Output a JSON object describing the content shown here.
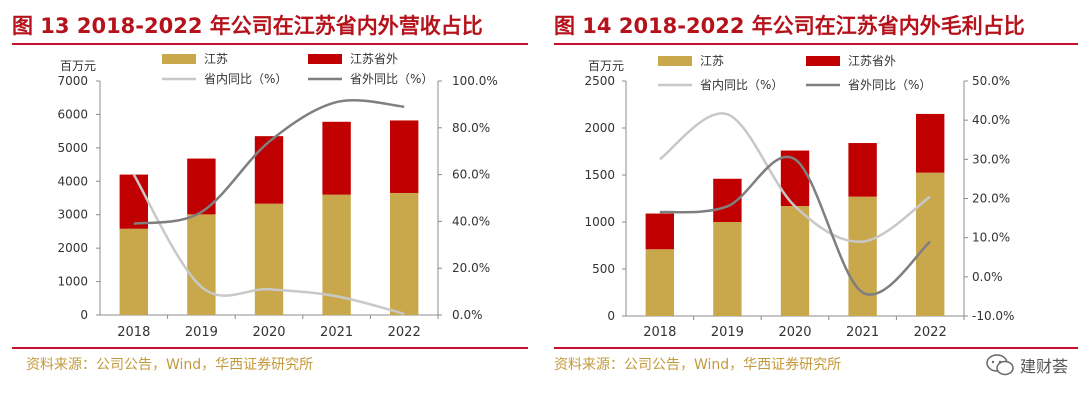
{
  "figures": [
    {
      "title": "图 13 2018-2022 年公司在江苏省内外营收占比",
      "source": "资料来源：公司公告，Wind，华西证券研究所",
      "unit_label": "百万元",
      "legend": {
        "jiangsu": "江苏",
        "outside": "江苏省外",
        "inside_ratio": "省内同比（%）",
        "outside_ratio": "省外同比（%）"
      }
    },
    {
      "title": "图 14 2018-2022 年公司在江苏省内外毛利占比",
      "source": "资料来源：公司公告，Wind，华西证券研究所",
      "unit_label": "百万元",
      "legend": {
        "jiangsu": "江苏",
        "outside": "江苏省外",
        "inside_ratio": "省内同比（%）",
        "outside_ratio": "省外同比（%）"
      }
    }
  ],
  "watermark": {
    "text": "建财荟"
  },
  "colors": {
    "jiangsu": "#c9a84c",
    "outside": "#c00000",
    "inside_line": "#c8c8c8",
    "outside_line": "#7f7f7f",
    "title": "#b5121b",
    "source": "#c49a3c"
  },
  "chart_data": [
    {
      "type": "bar",
      "stacked": true,
      "categories": [
        "2018",
        "2019",
        "2020",
        "2021",
        "2022"
      ],
      "ylim": [
        0,
        7000
      ],
      "yticks": [
        "0",
        "1000",
        "2000",
        "3000",
        "4000",
        "5000",
        "6000",
        "7000"
      ],
      "y2lim": [
        0,
        100
      ],
      "y2ticks": [
        "0.0%",
        "20.0%",
        "40.0%",
        "60.0%",
        "80.0%",
        "100.0%"
      ],
      "series": [
        {
          "name": "江苏",
          "kind": "bar",
          "axis": "left",
          "values": [
            2580,
            3010,
            3330,
            3600,
            3650
          ]
        },
        {
          "name": "江苏省外",
          "kind": "bar",
          "axis": "left",
          "values": [
            1620,
            1670,
            2020,
            2180,
            2170
          ]
        },
        {
          "name": "省内同比（%）",
          "kind": "line",
          "axis": "right",
          "values": [
            60,
            12,
            11,
            8,
            0.5
          ]
        },
        {
          "name": "省外同比（%）",
          "kind": "line",
          "axis": "right",
          "values": [
            39,
            44,
            74,
            91,
            89
          ]
        }
      ]
    },
    {
      "type": "bar",
      "stacked": true,
      "categories": [
        "2018",
        "2019",
        "2020",
        "2021",
        "2022"
      ],
      "ylim": [
        0,
        2500
      ],
      "yticks": [
        "0",
        "500",
        "1000",
        "1500",
        "2000",
        "2500"
      ],
      "y2lim": [
        -10,
        50
      ],
      "y2ticks": [
        "-10.0%",
        "0.0%",
        "10.0%",
        "20.0%",
        "30.0%",
        "40.0%",
        "50.0%"
      ],
      "series": [
        {
          "name": "江苏",
          "kind": "bar",
          "axis": "left",
          "values": [
            710,
            1000,
            1170,
            1270,
            1525
          ]
        },
        {
          "name": "江苏省外",
          "kind": "bar",
          "axis": "left",
          "values": [
            380,
            460,
            590,
            570,
            625
          ]
        },
        {
          "name": "省内同比（%）",
          "kind": "line",
          "axis": "right",
          "values": [
            30,
            41.5,
            18,
            9,
            20.5
          ]
        },
        {
          "name": "省外同比（%）",
          "kind": "line",
          "axis": "right",
          "values": [
            16.5,
            18,
            30,
            -4,
            9
          ]
        }
      ]
    }
  ]
}
